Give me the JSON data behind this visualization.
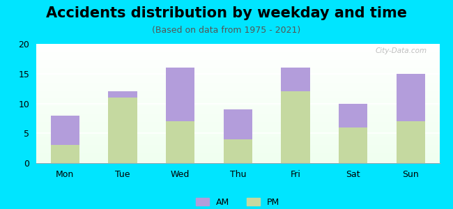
{
  "categories": [
    "Mon",
    "Tue",
    "Wed",
    "Thu",
    "Fri",
    "Sat",
    "Sun"
  ],
  "pm_values": [
    3,
    11,
    7,
    4,
    12,
    6,
    7
  ],
  "am_values": [
    5,
    1,
    9,
    5,
    4,
    4,
    8
  ],
  "am_color": "#b39ddb",
  "pm_color": "#c5d9a0",
  "title": "Accidents distribution by weekday and time",
  "subtitle": "(Based on data from 1975 - 2021)",
  "ylim": [
    0,
    20
  ],
  "yticks": [
    0,
    5,
    10,
    15,
    20
  ],
  "background_color": "#00e5ff",
  "bar_width": 0.5,
  "legend_am": "AM",
  "legend_pm": "PM",
  "watermark": "City-Data.com",
  "title_fontsize": 15,
  "subtitle_fontsize": 9,
  "tick_fontsize": 9
}
